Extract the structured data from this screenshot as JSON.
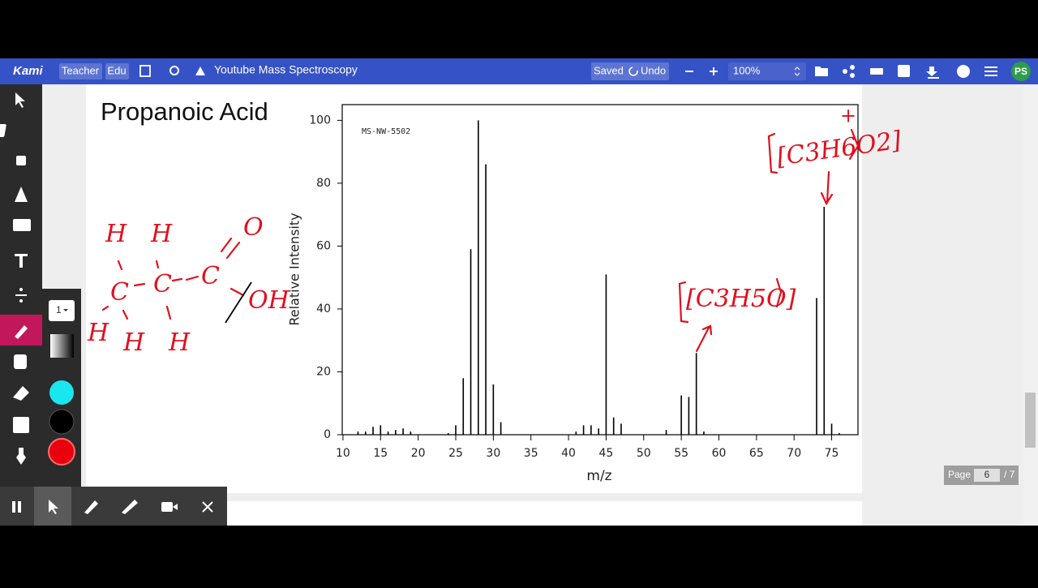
{
  "toolbar": {
    "logo": "Kami",
    "badges": [
      "Teacher",
      "Edu"
    ],
    "document_title": "Youtube Mass Spectroscopy",
    "saved": "Saved",
    "undo": "Undo",
    "zoom": "100%",
    "avatar": "PS"
  },
  "tool_panel": {
    "stroke_width": "1"
  },
  "page_indicator": {
    "label": "Page",
    "current": "6",
    "total": "/ 7"
  },
  "document": {
    "title": "Propanoic Acid",
    "handwriting": {
      "molecular_ion": "[C3H6O2]",
      "charge": "+",
      "fragment": "[C3H5O]",
      "atoms": [
        "H",
        "H",
        "O",
        "C",
        "C",
        "C",
        "OH",
        "H",
        "H",
        "H"
      ]
    }
  },
  "chart_data": {
    "type": "stem",
    "code": "MS-NW-5502",
    "x_label": "m/z",
    "y_label": "Relative Intensity",
    "x": [
      12,
      13,
      14,
      15,
      16,
      17,
      18,
      19,
      24,
      25,
      26,
      27,
      28,
      29,
      30,
      31,
      41,
      42,
      43,
      44,
      45,
      46,
      47,
      53,
      55,
      56,
      57,
      58,
      73,
      74,
      75,
      76
    ],
    "values": [
      1,
      1,
      2.5,
      3,
      1,
      1.5,
      2,
      1,
      0.5,
      3,
      18,
      59,
      100,
      86,
      16,
      4,
      1,
      3,
      3,
      2,
      51,
      5.5,
      3.5,
      1.5,
      12.5,
      12,
      26,
      1,
      43.5,
      72.5,
      3.5,
      0.5
    ],
    "color": "#000000",
    "xlim": [
      9.9,
      78.5
    ],
    "ylim": [
      0,
      105
    ],
    "xticks": [
      10,
      15,
      20,
      25,
      30,
      35,
      40,
      45,
      50,
      55,
      60,
      65,
      70,
      75
    ],
    "yticks": [
      0,
      20,
      40,
      60,
      80,
      100
    ]
  }
}
